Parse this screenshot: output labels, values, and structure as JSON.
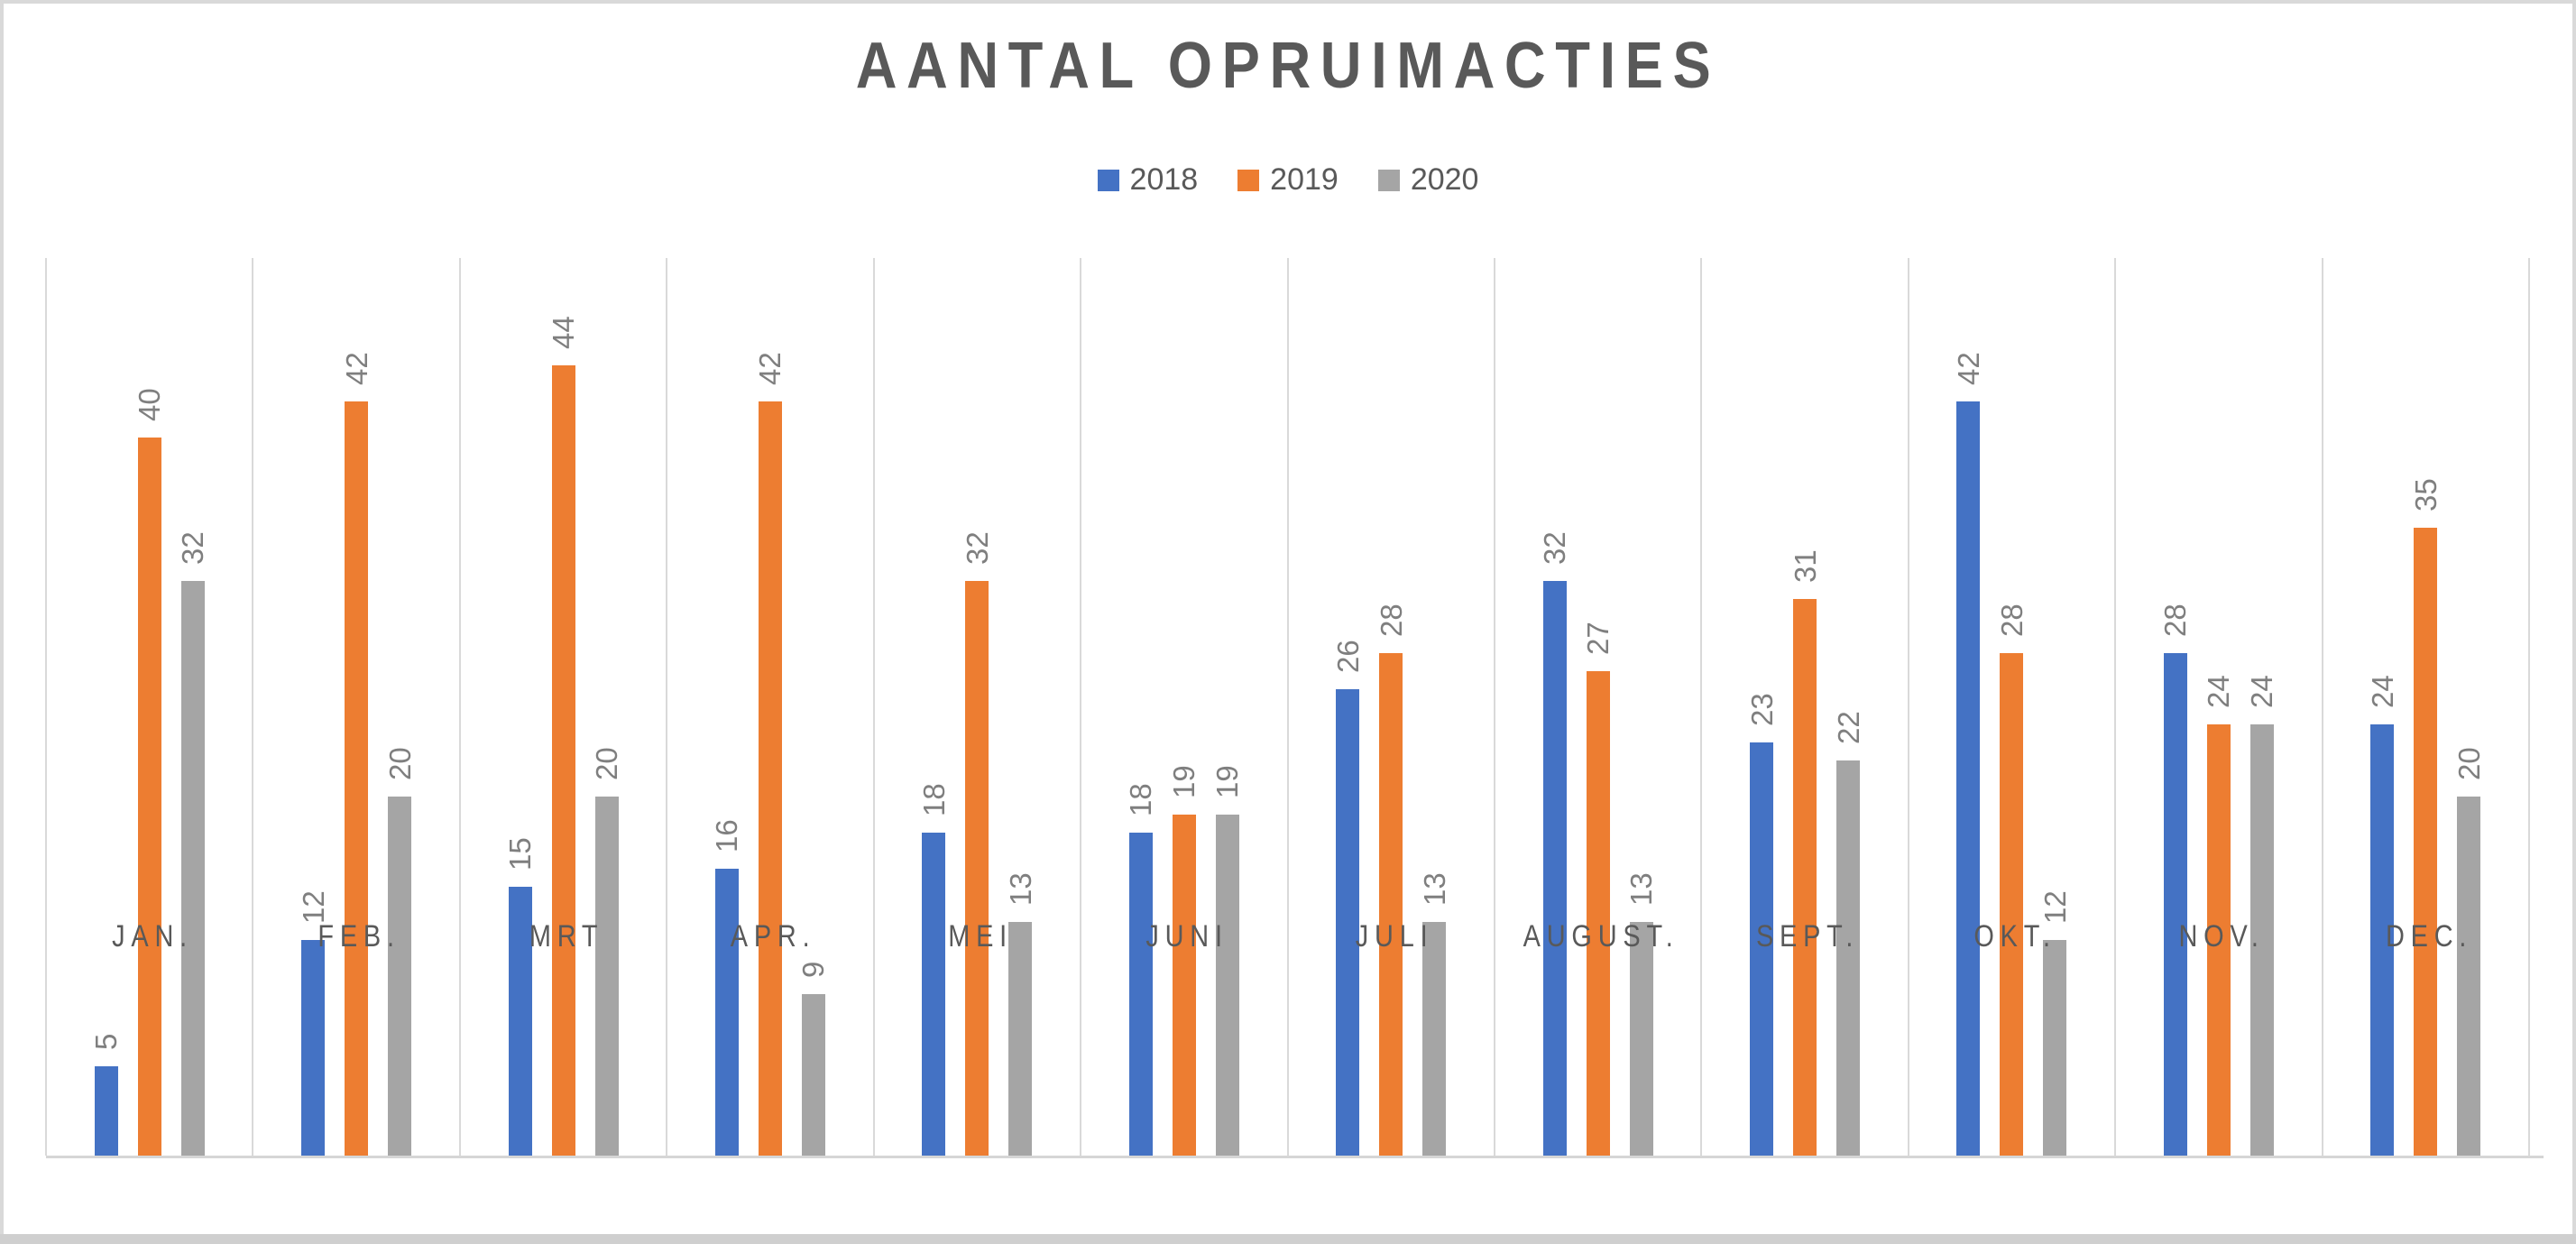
{
  "chart_data": {
    "type": "bar",
    "title": "AANTAL OPRUIMACTIES",
    "categories": [
      "JAN.",
      "FEB.",
      "MRT",
      "APR.",
      "MEI",
      "JUNI",
      "JULI",
      "AUGUST.",
      "SEPT.",
      "OKT.",
      "NOV.",
      "DEC."
    ],
    "category_keys": [
      "jan",
      "feb",
      "mrt",
      "apr",
      "mei",
      "juni",
      "juli",
      "august",
      "sept",
      "okt",
      "nov",
      "dec"
    ],
    "series": [
      {
        "name": "2018",
        "color": "#4472C4",
        "values": [
          5,
          12,
          15,
          16,
          18,
          18,
          26,
          32,
          23,
          42,
          28,
          24
        ]
      },
      {
        "name": "2019",
        "color": "#ED7D31",
        "values": [
          40,
          42,
          44,
          42,
          32,
          19,
          28,
          27,
          31,
          28,
          24,
          35
        ]
      },
      {
        "name": "2020",
        "color": "#A5A5A5",
        "values": [
          32,
          20,
          20,
          9,
          13,
          19,
          13,
          13,
          22,
          12,
          24,
          20
        ]
      }
    ],
    "ylim": [
      0,
      50
    ],
    "xlabel": "",
    "ylabel": "",
    "grid": "vertical-category-boundaries",
    "legend_position": "top-center",
    "data_labels": "value-above-bar-rotated-270"
  },
  "style_colors": {
    "background": "#FFFFFF",
    "gridline": "#D9D9D9",
    "axis_line": "#D6D6D6",
    "title_text": "#595959",
    "axis_label_text": "#595959",
    "data_label_text": "#7F7F7F",
    "legend_text": "#595959",
    "frame_border": "#D9D9D9",
    "bottom_strip": "#CFCFCF"
  }
}
